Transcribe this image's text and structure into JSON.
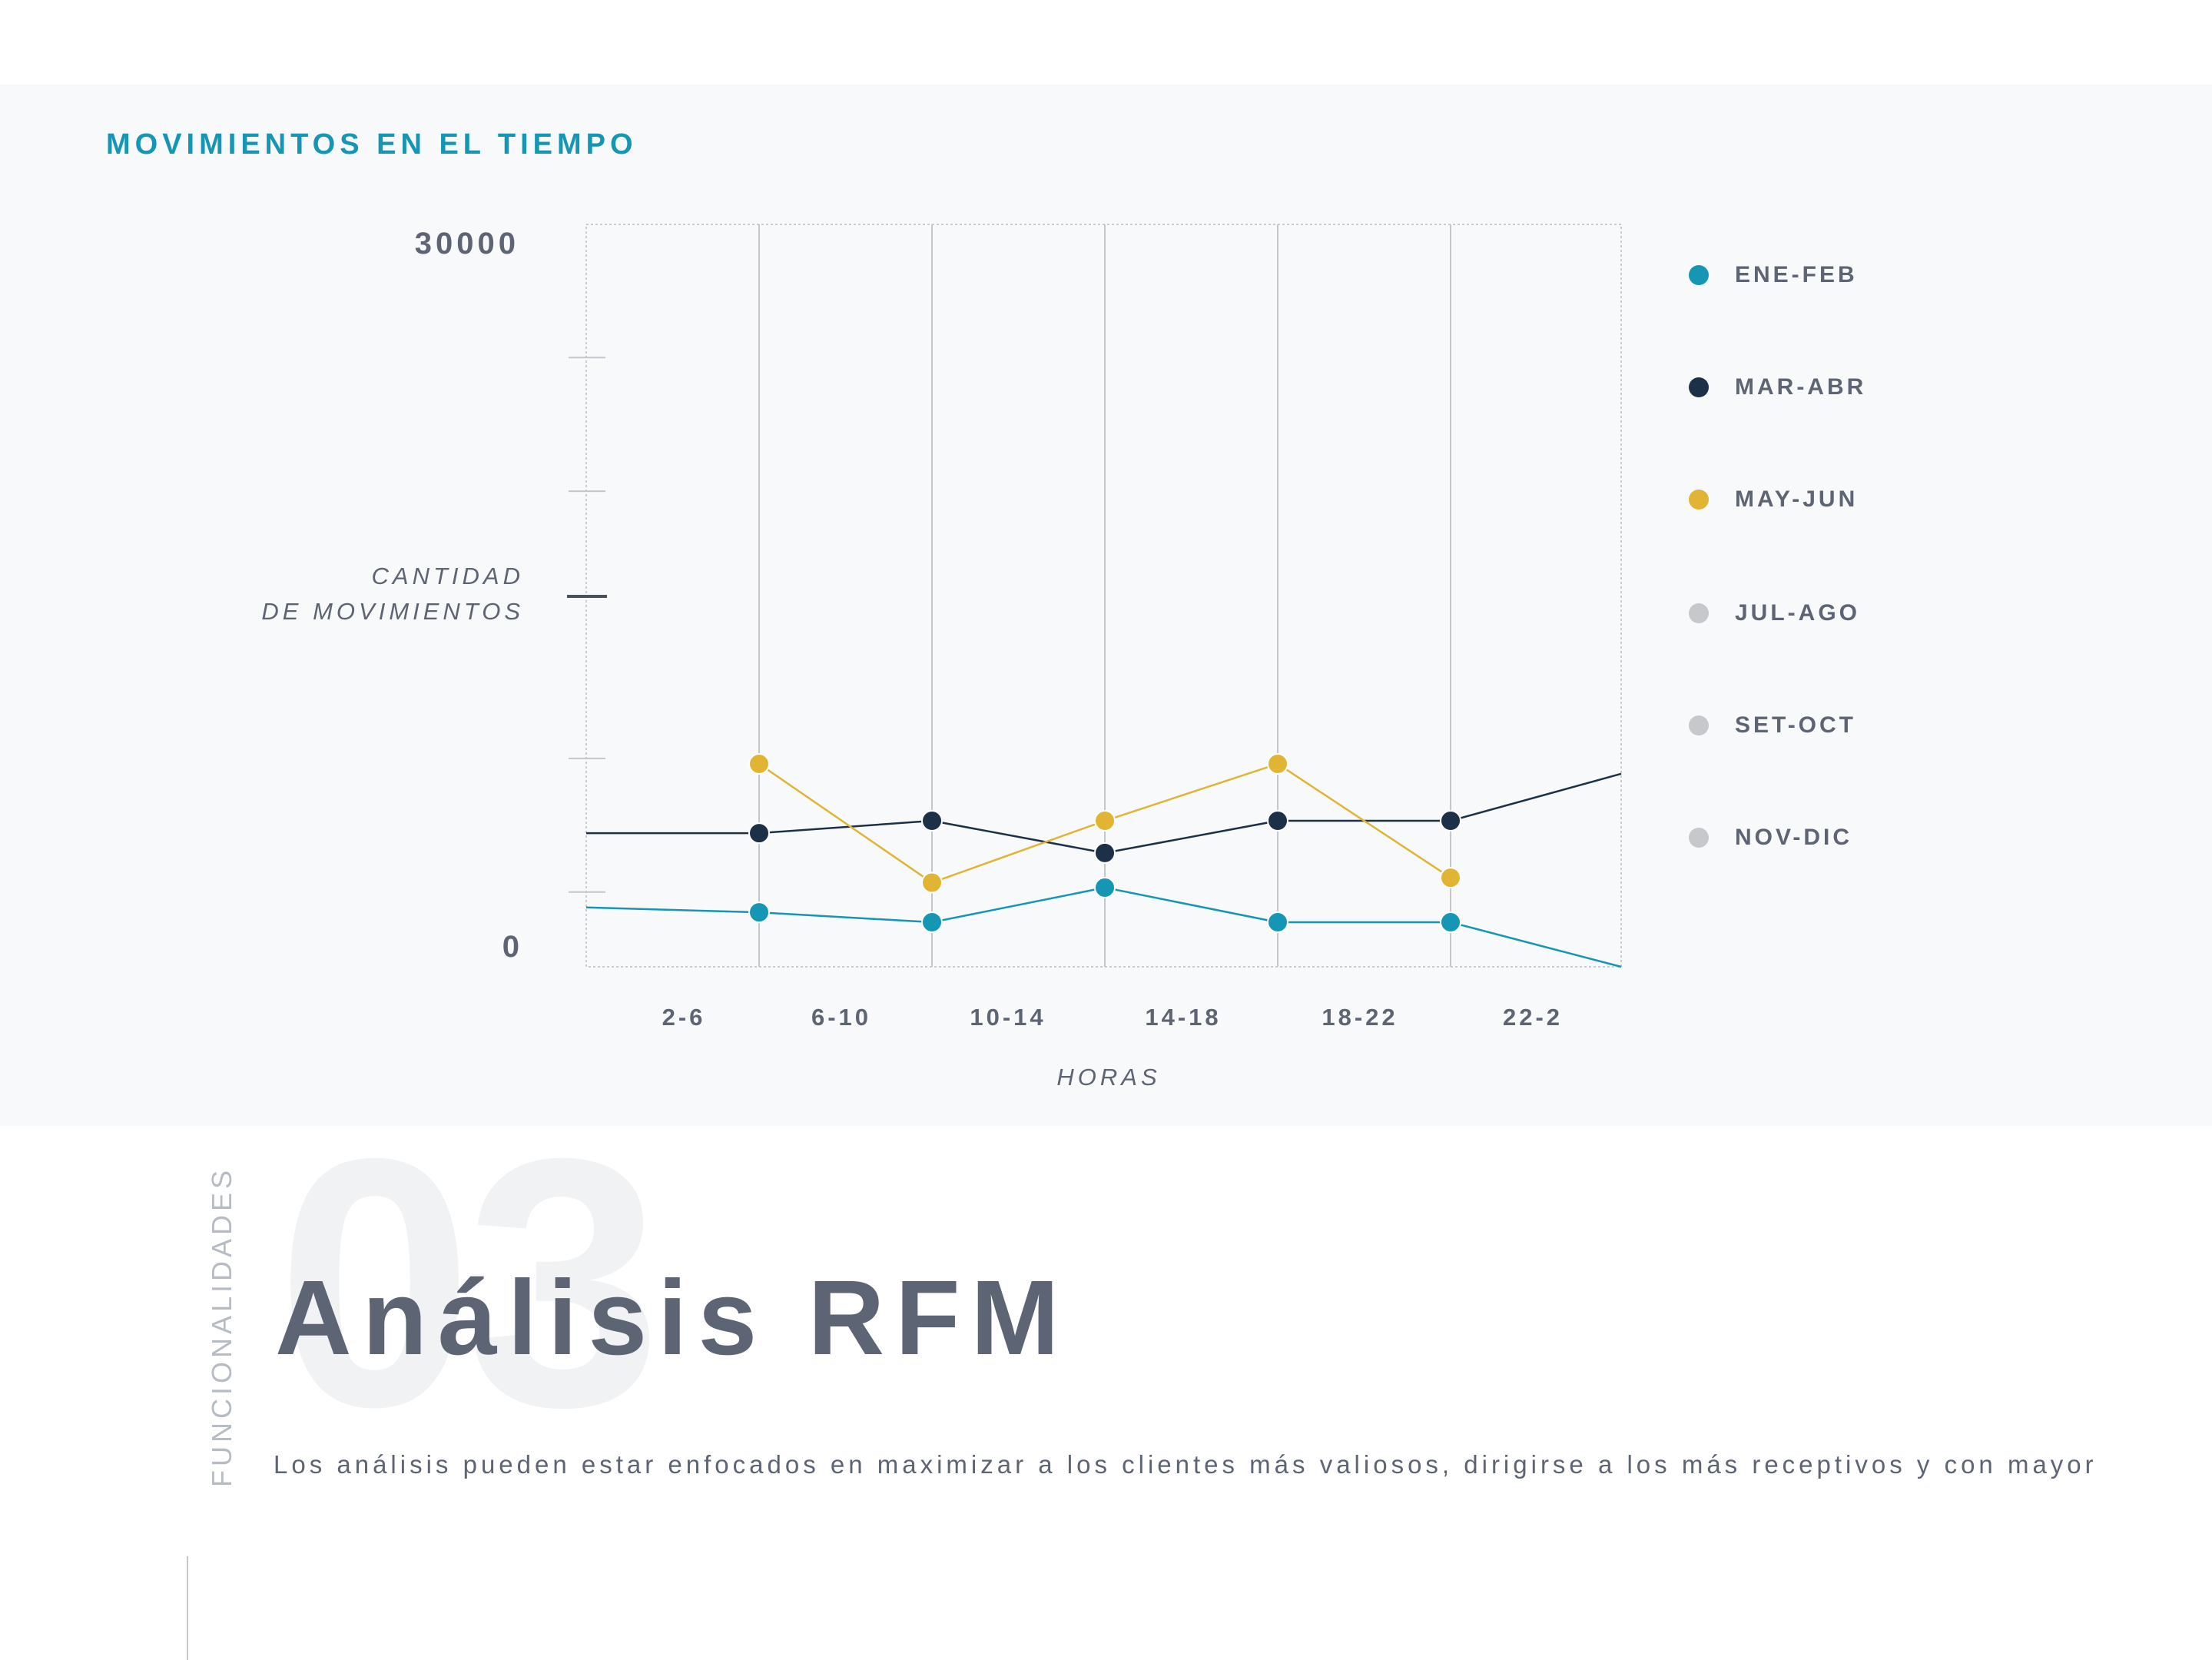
{
  "header": {
    "title": "MOVIMIENTOS EN EL TIEMPO"
  },
  "chart_data": {
    "type": "line",
    "title": "MOVIMIENTOS EN EL TIEMPO",
    "xlabel": "HORAS",
    "ylabel_lines": [
      "CANTIDAD",
      "DE MOVIMIENTOS"
    ],
    "ylim": [
      0,
      30000
    ],
    "y_tick_labels": [
      "30000",
      "0"
    ],
    "categories": [
      "2-6",
      "6-10",
      "10-14",
      "14-18",
      "18-22",
      "22-2"
    ],
    "grid": true,
    "legend_position": "right",
    "series": [
      {
        "name": "ENE-FEB",
        "color": "#1596b4",
        "visible": true,
        "x": [
          0,
          1,
          2,
          3,
          4,
          5,
          6
        ],
        "y": [
          2400,
          2200,
          1800,
          3200,
          1800,
          1800,
          0
        ],
        "markers": [
          false,
          true,
          true,
          true,
          true,
          true,
          false
        ]
      },
      {
        "name": "MAR-ABR",
        "color": "#1c3148",
        "visible": true,
        "x": [
          0,
          1,
          2,
          3,
          4,
          5,
          6
        ],
        "y": [
          5400,
          5400,
          5900,
          4600,
          5900,
          5900,
          7800
        ],
        "markers": [
          false,
          true,
          true,
          true,
          true,
          true,
          false
        ]
      },
      {
        "name": "MAY-JUN",
        "color": "#e2b434",
        "visible": true,
        "x": [
          1,
          2,
          3,
          4,
          5
        ],
        "y": [
          8200,
          3400,
          5900,
          8200,
          3600
        ],
        "markers": [
          true,
          true,
          true,
          true,
          true
        ]
      },
      {
        "name": "JUL-AGO",
        "color": "#c6c8cc",
        "visible": false,
        "x": [],
        "y": []
      },
      {
        "name": "SET-OCT",
        "color": "#c6c8cc",
        "visible": false,
        "x": [],
        "y": []
      },
      {
        "name": "NOV-DIC",
        "color": "#c6c8cc",
        "visible": false,
        "x": [],
        "y": []
      }
    ]
  },
  "section": {
    "vertical_label": "FUNCIONALIDADES",
    "number": "03",
    "title": "Análisis RFM",
    "text": "Los análisis pueden estar enfocados en maximizar a los clientes más valiosos, dirigirse a los más receptivos y con mayor"
  }
}
